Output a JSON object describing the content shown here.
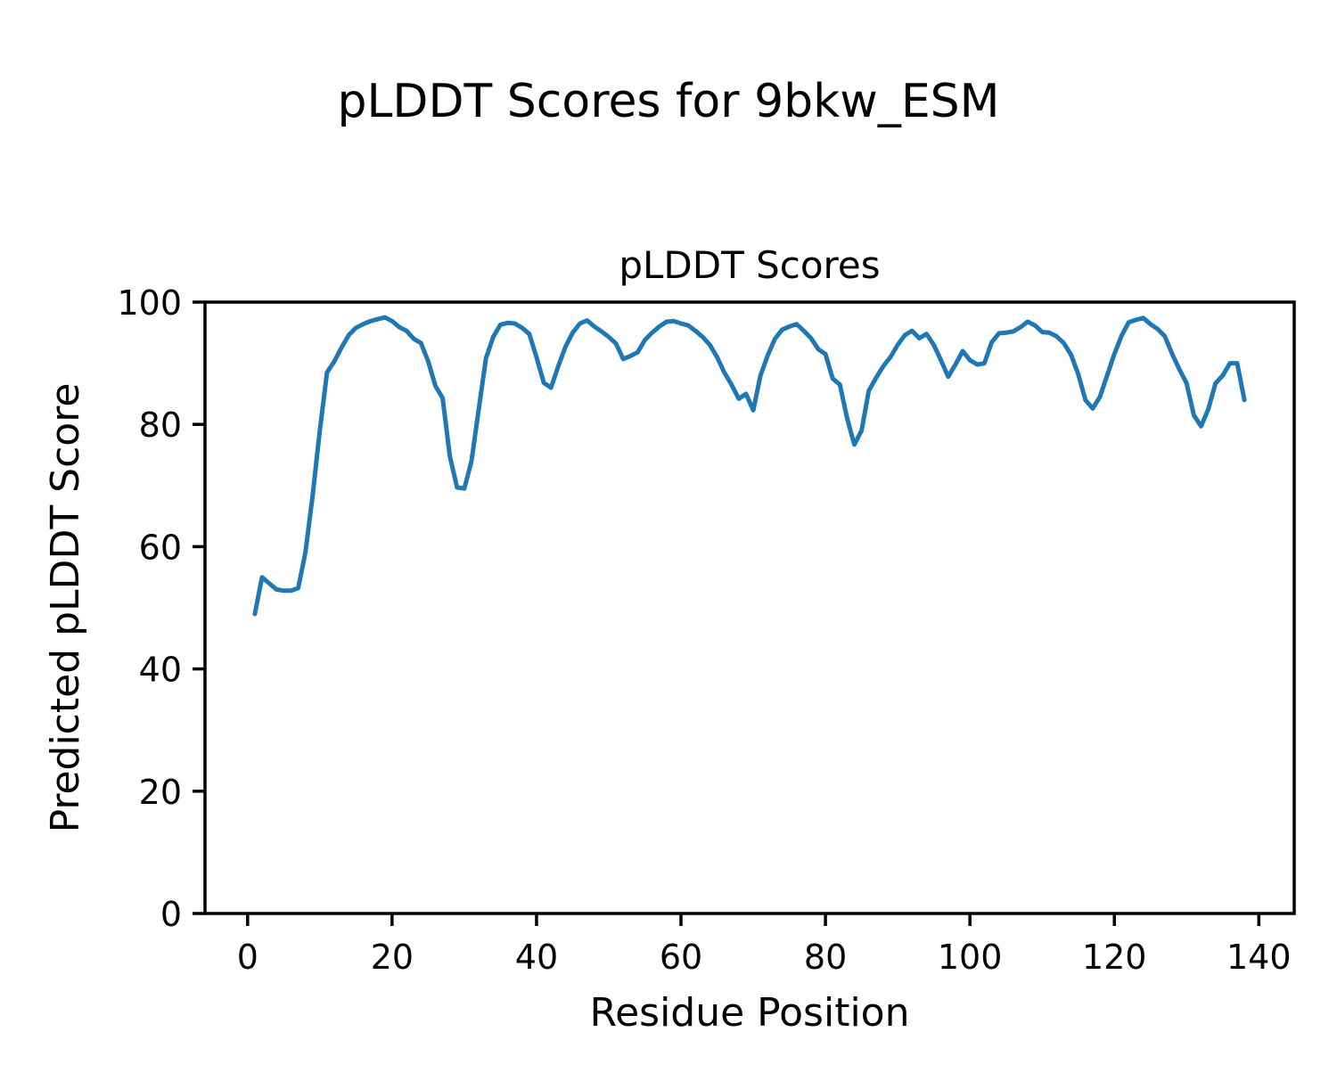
{
  "figure": {
    "suptitle": "pLDDT Scores for 9bkw_ESM",
    "background_color": "#ffffff",
    "text_color": "#000000"
  },
  "chart_data": {
    "type": "line",
    "title": "pLDDT Scores",
    "xlabel": "Residue Position",
    "ylabel": "Predicted pLDDT Score",
    "xlim": [
      -5.9,
      144.9
    ],
    "ylim": [
      0,
      100
    ],
    "xticks": [
      0,
      20,
      40,
      60,
      80,
      100,
      120,
      140
    ],
    "yticks": [
      0,
      20,
      40,
      60,
      80,
      100
    ],
    "grid": false,
    "legend": "none",
    "line_color": "#1f77b4",
    "series": [
      {
        "name": "pLDDT",
        "x": [
          1,
          2,
          3,
          4,
          5,
          6,
          7,
          8,
          9,
          10,
          11,
          12,
          13,
          14,
          15,
          16,
          17,
          18,
          19,
          20,
          21,
          22,
          23,
          24,
          25,
          26,
          27,
          28,
          29,
          30,
          31,
          32,
          33,
          34,
          35,
          36,
          37,
          38,
          39,
          40,
          41,
          42,
          43,
          44,
          45,
          46,
          47,
          48,
          49,
          50,
          51,
          52,
          53,
          54,
          55,
          56,
          57,
          58,
          59,
          60,
          61,
          62,
          63,
          64,
          65,
          66,
          67,
          68,
          69,
          70,
          71,
          72,
          73,
          74,
          75,
          76,
          77,
          78,
          79,
          80,
          81,
          82,
          83,
          84,
          85,
          86,
          87,
          88,
          89,
          90,
          91,
          92,
          93,
          94,
          95,
          96,
          97,
          98,
          99,
          100,
          101,
          102,
          103,
          104,
          105,
          106,
          107,
          108,
          109,
          110,
          111,
          112,
          113,
          114,
          115,
          116,
          117,
          118,
          119,
          120,
          121,
          122,
          123,
          124,
          125,
          126,
          127,
          128,
          129,
          130,
          131,
          132,
          133,
          134,
          135,
          136,
          137,
          138
        ],
        "values": [
          49,
          55,
          54,
          53,
          52.8,
          52.8,
          53.2,
          59,
          68.3,
          79,
          88.5,
          90.3,
          92.6,
          94.6,
          95.8,
          96.4,
          96.9,
          97.2,
          97.5,
          96.9,
          95.9,
          95.3,
          94,
          93.3,
          90.3,
          86.3,
          84.3,
          74.8,
          69.7,
          69.5,
          74,
          82.5,
          90.8,
          94.3,
          96.3,
          96.6,
          96.5,
          95.8,
          94.8,
          91,
          86.8,
          86,
          89.5,
          92.7,
          95,
          96.5,
          97,
          96,
          95.2,
          94.3,
          93.2,
          90.7,
          91.2,
          91.8,
          93.8,
          95,
          96,
          96.8,
          96.9,
          96.5,
          96.2,
          95.3,
          94.3,
          93,
          91,
          88.5,
          86.5,
          84.2,
          85,
          82.3,
          88,
          91.3,
          94,
          95.5,
          96,
          96.4,
          95.3,
          94.1,
          92.3,
          91.5,
          87.5,
          86.5,
          81,
          76.7,
          79,
          85.5,
          87.6,
          89.5,
          91,
          93,
          94.6,
          95.3,
          94.1,
          94.8,
          93,
          90.5,
          87.8,
          89.8,
          92,
          90.5,
          89.8,
          90,
          93.4,
          94.9,
          95,
          95.2,
          95.9,
          96.8,
          96.2,
          95.1,
          95,
          94.4,
          93.3,
          91.4,
          88.2,
          84,
          82.6,
          84.5,
          88,
          91.5,
          94.5,
          96.7,
          97.1,
          97.4,
          96.4,
          95.6,
          94.4,
          91.5,
          89,
          86.7,
          81.5,
          79.7,
          82.5,
          86.7,
          88,
          90,
          90,
          84
        ]
      }
    ]
  }
}
